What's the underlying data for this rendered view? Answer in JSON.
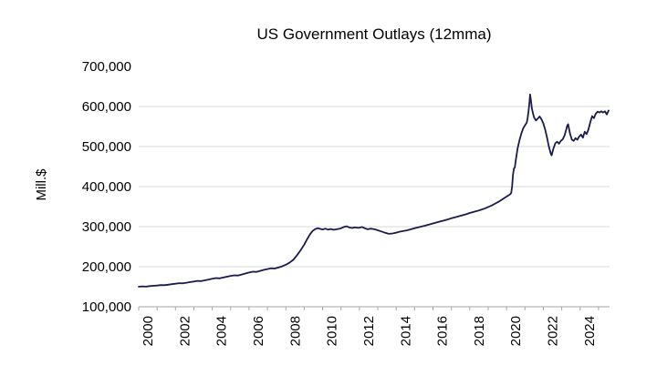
{
  "chart": {
    "title": "US Government Outlays (12mma)",
    "y_axis_title": "Mill.$"
  },
  "chart_data": {
    "type": "line",
    "title": "US Government Outlays (12mma)",
    "xlabel": "",
    "ylabel": "Mill.$",
    "legend": "none",
    "grid": "horizontal",
    "line_color": "#1b1b4d",
    "gridline_color": "#d9d9d9",
    "axis_color": "#a6a6a6",
    "x_range": [
      2000,
      2025.6
    ],
    "y_range": [
      100000,
      700000
    ],
    "y_ticks": [
      {
        "value": 100000,
        "label": "100,000",
        "gridline": false
      },
      {
        "value": 200000,
        "label": "200,000",
        "gridline": true
      },
      {
        "value": 300000,
        "label": "300,000",
        "gridline": true
      },
      {
        "value": 400000,
        "label": "400,000",
        "gridline": true
      },
      {
        "value": 500000,
        "label": "500,000",
        "gridline": true
      },
      {
        "value": 600000,
        "label": "600,000",
        "gridline": true
      },
      {
        "value": 700000,
        "label": "700,000",
        "gridline": false
      }
    ],
    "x_tick_years": [
      2000,
      2001,
      2002,
      2003,
      2004,
      2005,
      2006,
      2007,
      2008,
      2009,
      2010,
      2011,
      2012,
      2013,
      2014,
      2015,
      2016,
      2017,
      2018,
      2019,
      2020,
      2021,
      2022,
      2023,
      2024,
      2025
    ],
    "x_tick_labels": [
      {
        "year": 2000,
        "label": "2000"
      },
      {
        "year": 2002,
        "label": "2002"
      },
      {
        "year": 2004,
        "label": "2004"
      },
      {
        "year": 2006,
        "label": "2006"
      },
      {
        "year": 2008,
        "label": "2008"
      },
      {
        "year": 2010,
        "label": "2010"
      },
      {
        "year": 2012,
        "label": "2012"
      },
      {
        "year": 2014,
        "label": "2014"
      },
      {
        "year": 2016,
        "label": "2016"
      },
      {
        "year": 2018,
        "label": "2018"
      },
      {
        "year": 2020,
        "label": "2020"
      },
      {
        "year": 2022,
        "label": "2022"
      },
      {
        "year": 2024,
        "label": "2024"
      }
    ],
    "series": [
      {
        "name": "US Government Outlays (12mma)",
        "points": [
          [
            2000.0,
            150000
          ],
          [
            2000.2,
            150800
          ],
          [
            2000.4,
            150300
          ],
          [
            2000.6,
            151500
          ],
          [
            2000.8,
            152200
          ],
          [
            2001.0,
            153000
          ],
          [
            2001.2,
            154200
          ],
          [
            2001.4,
            153800
          ],
          [
            2001.6,
            155000
          ],
          [
            2001.8,
            156300
          ],
          [
            2002.0,
            157500
          ],
          [
            2002.2,
            158800
          ],
          [
            2002.4,
            158400
          ],
          [
            2002.6,
            160000
          ],
          [
            2002.8,
            161500
          ],
          [
            2003.0,
            163000
          ],
          [
            2003.2,
            164500
          ],
          [
            2003.4,
            164000
          ],
          [
            2003.6,
            166000
          ],
          [
            2003.8,
            168000
          ],
          [
            2004.0,
            170000
          ],
          [
            2004.2,
            171500
          ],
          [
            2004.4,
            171000
          ],
          [
            2004.6,
            173000
          ],
          [
            2004.8,
            175000
          ],
          [
            2005.0,
            177000
          ],
          [
            2005.2,
            178500
          ],
          [
            2005.4,
            178000
          ],
          [
            2005.6,
            180500
          ],
          [
            2005.8,
            183000
          ],
          [
            2006.0,
            185500
          ],
          [
            2006.2,
            187500
          ],
          [
            2006.4,
            187000
          ],
          [
            2006.6,
            189500
          ],
          [
            2006.8,
            192000
          ],
          [
            2007.0,
            194000
          ],
          [
            2007.2,
            196000
          ],
          [
            2007.4,
            195500
          ],
          [
            2007.6,
            198000
          ],
          [
            2007.8,
            201000
          ],
          [
            2008.0,
            205000
          ],
          [
            2008.2,
            210000
          ],
          [
            2008.4,
            217000
          ],
          [
            2008.6,
            228000
          ],
          [
            2008.8,
            241000
          ],
          [
            2009.0,
            255000
          ],
          [
            2009.15,
            268000
          ],
          [
            2009.3,
            280000
          ],
          [
            2009.45,
            289000
          ],
          [
            2009.6,
            294000
          ],
          [
            2009.75,
            296000
          ],
          [
            2009.9,
            294000
          ],
          [
            2010.0,
            293000
          ],
          [
            2010.15,
            295000
          ],
          [
            2010.3,
            292500
          ],
          [
            2010.45,
            294000
          ],
          [
            2010.6,
            292000
          ],
          [
            2010.75,
            293500
          ],
          [
            2010.9,
            294500
          ],
          [
            2011.0,
            296000
          ],
          [
            2011.15,
            299000
          ],
          [
            2011.3,
            301000
          ],
          [
            2011.45,
            298000
          ],
          [
            2011.6,
            296500
          ],
          [
            2011.75,
            298500
          ],
          [
            2011.9,
            297000
          ],
          [
            2012.0,
            297500
          ],
          [
            2012.15,
            299000
          ],
          [
            2012.3,
            296000
          ],
          [
            2012.45,
            293500
          ],
          [
            2012.6,
            295000
          ],
          [
            2012.75,
            294000
          ],
          [
            2012.9,
            292500
          ],
          [
            2013.0,
            291000
          ],
          [
            2013.2,
            288000
          ],
          [
            2013.4,
            284500
          ],
          [
            2013.6,
            282000
          ],
          [
            2013.8,
            283000
          ],
          [
            2014.0,
            285000
          ],
          [
            2014.2,
            287500
          ],
          [
            2014.4,
            289000
          ],
          [
            2014.6,
            291000
          ],
          [
            2014.8,
            293500
          ],
          [
            2015.0,
            296000
          ],
          [
            2015.2,
            298500
          ],
          [
            2015.4,
            300500
          ],
          [
            2015.6,
            303000
          ],
          [
            2015.8,
            305500
          ],
          [
            2016.0,
            308000
          ],
          [
            2016.2,
            310500
          ],
          [
            2016.4,
            313000
          ],
          [
            2016.6,
            315500
          ],
          [
            2016.8,
            318000
          ],
          [
            2017.0,
            321000
          ],
          [
            2017.2,
            323500
          ],
          [
            2017.4,
            326000
          ],
          [
            2017.6,
            328500
          ],
          [
            2017.8,
            331000
          ],
          [
            2018.0,
            334000
          ],
          [
            2018.2,
            336500
          ],
          [
            2018.4,
            339000
          ],
          [
            2018.6,
            342000
          ],
          [
            2018.8,
            345000
          ],
          [
            2019.0,
            349000
          ],
          [
            2019.2,
            353000
          ],
          [
            2019.4,
            358000
          ],
          [
            2019.6,
            363000
          ],
          [
            2019.8,
            369000
          ],
          [
            2020.0,
            375000
          ],
          [
            2020.1,
            378000
          ],
          [
            2020.2,
            381000
          ],
          [
            2020.25,
            384000
          ],
          [
            2020.3,
            400000
          ],
          [
            2020.35,
            430000
          ],
          [
            2020.4,
            445000
          ],
          [
            2020.45,
            448000
          ],
          [
            2020.5,
            465000
          ],
          [
            2020.6,
            495000
          ],
          [
            2020.7,
            515000
          ],
          [
            2020.8,
            532000
          ],
          [
            2020.9,
            545000
          ],
          [
            2021.0,
            553000
          ],
          [
            2021.1,
            560000
          ],
          [
            2021.15,
            572000
          ],
          [
            2021.2,
            590000
          ],
          [
            2021.25,
            612000
          ],
          [
            2021.28,
            630000
          ],
          [
            2021.32,
            618000
          ],
          [
            2021.38,
            595000
          ],
          [
            2021.45,
            580000
          ],
          [
            2021.5,
            572000
          ],
          [
            2021.6,
            565000
          ],
          [
            2021.7,
            570000
          ],
          [
            2021.8,
            575000
          ],
          [
            2021.9,
            568000
          ],
          [
            2022.0,
            558000
          ],
          [
            2022.1,
            542000
          ],
          [
            2022.2,
            522000
          ],
          [
            2022.3,
            500000
          ],
          [
            2022.4,
            483000
          ],
          [
            2022.45,
            478000
          ],
          [
            2022.55,
            495000
          ],
          [
            2022.65,
            508000
          ],
          [
            2022.75,
            512000
          ],
          [
            2022.85,
            507000
          ],
          [
            2022.95,
            514000
          ],
          [
            2023.05,
            518000
          ],
          [
            2023.15,
            527000
          ],
          [
            2023.25,
            543000
          ],
          [
            2023.3,
            552000
          ],
          [
            2023.35,
            556000
          ],
          [
            2023.45,
            532000
          ],
          [
            2023.55,
            517000
          ],
          [
            2023.65,
            514000
          ],
          [
            2023.75,
            521000
          ],
          [
            2023.85,
            517000
          ],
          [
            2023.95,
            525000
          ],
          [
            2024.05,
            530000
          ],
          [
            2024.15,
            522000
          ],
          [
            2024.25,
            537000
          ],
          [
            2024.35,
            531000
          ],
          [
            2024.45,
            542000
          ],
          [
            2024.55,
            560000
          ],
          [
            2024.65,
            576000
          ],
          [
            2024.75,
            571000
          ],
          [
            2024.85,
            582000
          ],
          [
            2024.95,
            587000
          ],
          [
            2025.05,
            585000
          ],
          [
            2025.15,
            588000
          ],
          [
            2025.25,
            585000
          ],
          [
            2025.35,
            588000
          ],
          [
            2025.45,
            580000
          ],
          [
            2025.55,
            590000
          ]
        ]
      }
    ]
  }
}
